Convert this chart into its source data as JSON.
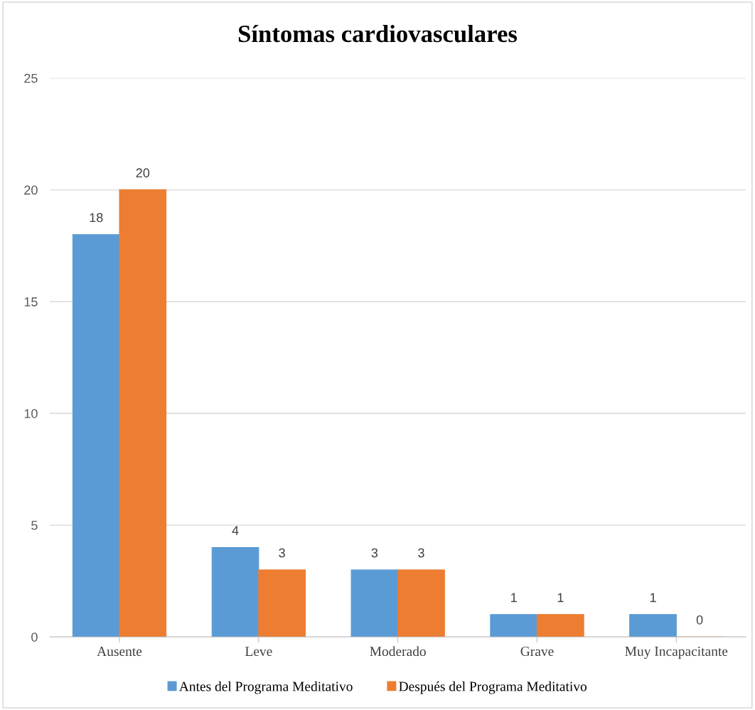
{
  "chart_data": {
    "type": "bar",
    "title": "Síntomas cardiovasculares",
    "categories": [
      "Ausente",
      "Leve",
      "Moderado",
      "Grave",
      "Muy Incapacitante"
    ],
    "series": [
      {
        "name": "Antes del Programa Meditativo",
        "color": "#5b9bd5",
        "values": [
          18,
          4,
          3,
          1,
          1
        ]
      },
      {
        "name": "Después del Programa Meditativo",
        "color": "#ed7d31",
        "values": [
          20,
          3,
          3,
          1,
          0
        ]
      }
    ],
    "ylim": [
      0,
      25
    ],
    "yticks": [
      0,
      5,
      10,
      15,
      20,
      25
    ],
    "grid": "y",
    "legend": "bottom",
    "data_labels": true
  }
}
